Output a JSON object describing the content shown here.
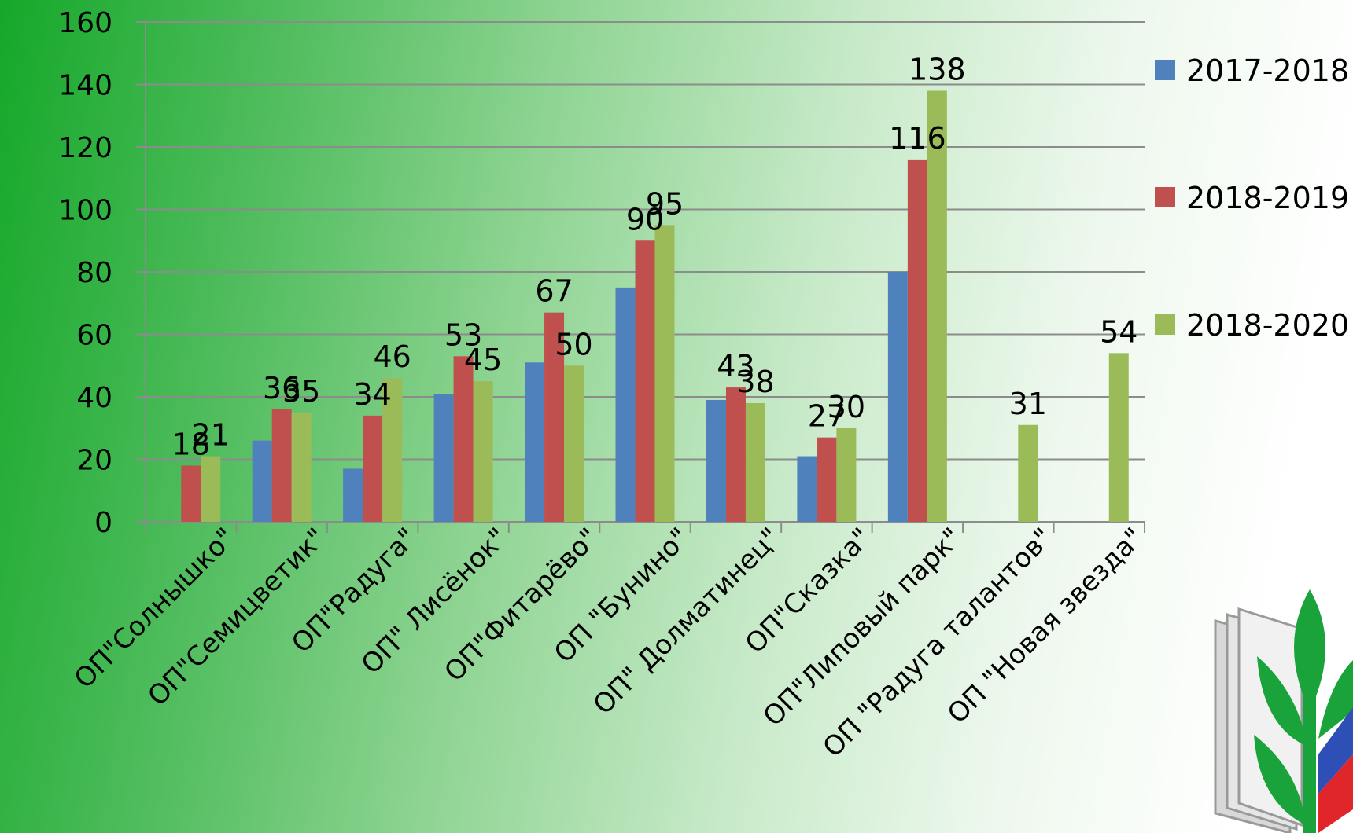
{
  "chart_data": {
    "type": "bar",
    "title": "",
    "xlabel": "",
    "ylabel": "",
    "ylim": [
      0,
      160
    ],
    "yticks": [
      0,
      20,
      40,
      60,
      80,
      100,
      120,
      140,
      160
    ],
    "grid": true,
    "legend_position": "right",
    "categories": [
      "ОП\"Солнышко\"",
      "ОП\"Семицветик\"",
      "ОП\"Радуга\"",
      "ОП\" Лисёнок\"",
      "ОП\"Фитарёво\"",
      "ОП \"Бунино\"",
      "ОП\" Долматинец\"",
      "ОП\"Сказка\"",
      "ОП\"Липовый парк\"",
      "ОП \"Радуга талантов\"",
      "ОП \"Новая звезда\""
    ],
    "series": [
      {
        "name": "2017-2018",
        "color": "#4f81bd",
        "values": [
          null,
          26,
          17,
          41,
          51,
          75,
          39,
          21,
          80,
          null,
          null
        ],
        "labels": [
          null,
          null,
          null,
          null,
          null,
          null,
          null,
          null,
          null,
          null,
          null
        ]
      },
      {
        "name": "2018-2019",
        "color": "#c0504d",
        "values": [
          18,
          36,
          34,
          53,
          67,
          90,
          43,
          27,
          116,
          null,
          null
        ],
        "labels": [
          "18",
          "36",
          "34",
          "53",
          "67",
          "90",
          "43",
          "27",
          "116",
          null,
          null
        ]
      },
      {
        "name": "2018-2020",
        "color": "#9bbb59",
        "values": [
          21,
          35,
          46,
          45,
          50,
          95,
          38,
          30,
          138,
          31,
          54
        ],
        "labels": [
          "21",
          "35",
          "46",
          "45",
          "50",
          "95",
          "38",
          "30",
          "138",
          "31",
          "54"
        ]
      }
    ]
  },
  "colors": {
    "grid": "#8c8c8c",
    "axis": "#8c8c8c",
    "background_start": "#16a82a",
    "background_end": "#ffffff"
  },
  "logo": {
    "icon": "trade-union-book-sprout-logo"
  }
}
